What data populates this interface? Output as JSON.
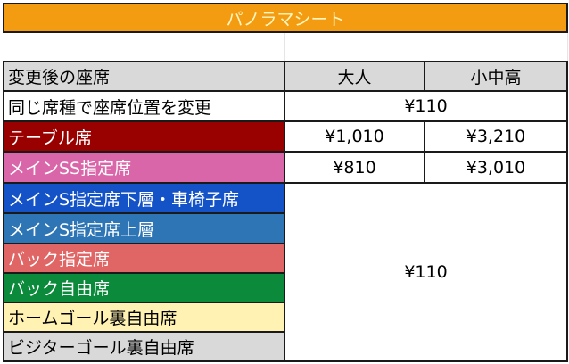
{
  "title": "パノラマシート",
  "header": {
    "seat": "変更後の座席",
    "adult": "大人",
    "child": "小中高"
  },
  "rows": [
    {
      "label": "同じ席種で座席位置を変更",
      "price": "¥110",
      "color": "#ffffff"
    },
    {
      "label": "テーブル席",
      "adult": "¥1,010",
      "child": "¥3,210",
      "color": "#990000"
    },
    {
      "label": "メインSS指定席",
      "adult": "¥810",
      "child": "¥3,010",
      "color": "#d966a8"
    },
    {
      "label": "メインS指定席下層・車椅子席",
      "color": "#1452c8"
    },
    {
      "label": "メインS指定席上層",
      "color": "#2e75b6"
    },
    {
      "label": "バック指定席",
      "color": "#e06666"
    },
    {
      "label": "バック自由席",
      "color": "#0a8a3a"
    },
    {
      "label": "ホームゴール裏自由席",
      "color": "#fff2b3"
    },
    {
      "label": "ビジターゴール裏自由席",
      "color": "#d9d9d9"
    }
  ],
  "merged_price": "¥110"
}
